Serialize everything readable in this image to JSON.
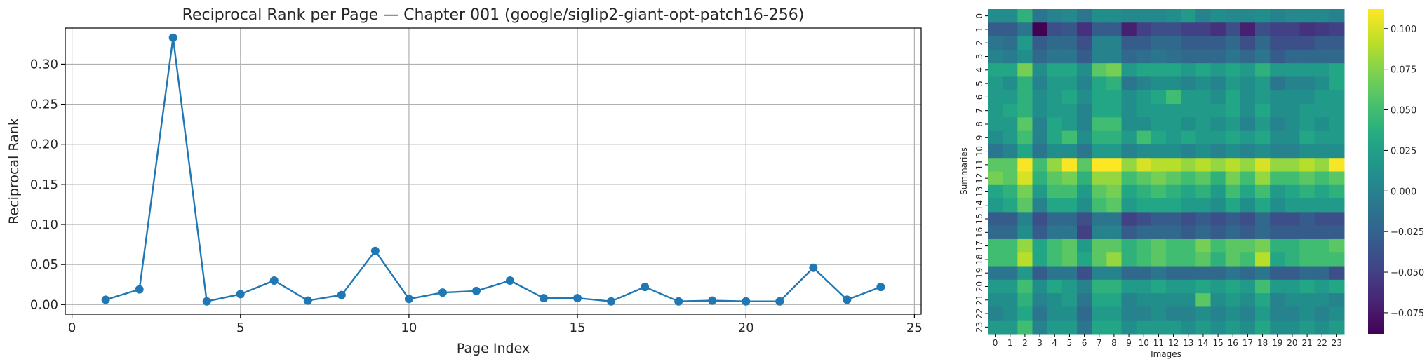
{
  "chart_data": [
    {
      "type": "line",
      "title": "Reciprocal Rank per Page — Chapter 001 (google/siglip2-giant-opt-patch16-256)",
      "xlabel": "Page Index",
      "ylabel": "Reciprocal Rank",
      "xlim": [
        -0.2,
        25.2
      ],
      "ylim": [
        -0.012,
        0.345
      ],
      "xticks": [
        0,
        5,
        10,
        15,
        20,
        25
      ],
      "yticks": [
        0.0,
        0.05,
        0.1,
        0.15,
        0.2,
        0.25,
        0.3
      ],
      "ytick_labels": [
        "0.00",
        "0.05",
        "0.10",
        "0.15",
        "0.20",
        "0.25",
        "0.30"
      ],
      "grid": true,
      "color": "#1f77b4",
      "x": [
        1,
        2,
        3,
        4,
        5,
        6,
        7,
        8,
        9,
        10,
        11,
        12,
        13,
        14,
        15,
        16,
        17,
        18,
        19,
        20,
        21,
        22,
        23,
        24
      ],
      "y": [
        0.006,
        0.019,
        0.333,
        0.004,
        0.013,
        0.03,
        0.005,
        0.012,
        0.067,
        0.007,
        0.015,
        0.017,
        0.03,
        0.008,
        0.008,
        0.004,
        0.022,
        0.004,
        0.005,
        0.004,
        0.004,
        0.046,
        0.006,
        0.022
      ]
    },
    {
      "type": "heatmap",
      "xlabel": "Images",
      "ylabel": "Summaries",
      "x_categories": [
        "0",
        "1",
        "2",
        "3",
        "4",
        "5",
        "6",
        "7",
        "8",
        "9",
        "10",
        "11",
        "12",
        "13",
        "14",
        "15",
        "16",
        "17",
        "18",
        "19",
        "20",
        "21",
        "22",
        "23"
      ],
      "y_categories": [
        "0",
        "1",
        "2",
        "3",
        "4",
        "5",
        "6",
        "7",
        "8",
        "9",
        "10",
        "11",
        "12",
        "13",
        "14",
        "15",
        "16",
        "17",
        "18",
        "19",
        "20",
        "21",
        "22",
        "23"
      ],
      "colorscale": "viridis",
      "vmin": -0.088,
      "vmax": 0.112,
      "colorbar_ticks": [
        0.1,
        0.075,
        0.05,
        0.025,
        0.0,
        -0.025,
        -0.05,
        -0.075
      ],
      "colorbar_tick_labels": [
        "0.100",
        "0.075",
        "0.050",
        "0.025",
        "0.000",
        "−0.025",
        "−0.050",
        "−0.075"
      ],
      "values": [
        [
          0.008,
          0.008,
          0.04,
          -0.01,
          0.0,
          0.005,
          -0.01,
          0.01,
          0.01,
          0.005,
          0.005,
          0.005,
          0.01,
          0.02,
          0.0,
          0.01,
          0.005,
          0.005,
          0.01,
          0.0,
          0.005,
          0.005,
          0.005,
          0.0
        ],
        [
          -0.03,
          -0.03,
          -0.01,
          -0.088,
          -0.04,
          -0.035,
          -0.06,
          -0.03,
          -0.03,
          -0.07,
          -0.05,
          -0.04,
          -0.04,
          -0.05,
          -0.05,
          -0.06,
          -0.04,
          -0.07,
          -0.04,
          -0.05,
          -0.05,
          -0.06,
          -0.055,
          -0.05
        ],
        [
          -0.01,
          -0.015,
          0.02,
          -0.03,
          -0.02,
          -0.02,
          -0.04,
          0.0,
          0.0,
          -0.03,
          -0.03,
          -0.02,
          -0.02,
          -0.03,
          -0.03,
          -0.03,
          -0.02,
          -0.04,
          -0.02,
          -0.04,
          -0.04,
          -0.04,
          -0.03,
          -0.03
        ],
        [
          0.0,
          -0.005,
          0.01,
          -0.02,
          -0.01,
          -0.01,
          -0.03,
          0.0,
          0.0,
          -0.02,
          -0.015,
          -0.01,
          -0.015,
          -0.02,
          -0.02,
          -0.02,
          -0.01,
          -0.02,
          -0.01,
          -0.03,
          -0.02,
          -0.02,
          -0.02,
          -0.02
        ],
        [
          0.03,
          0.03,
          0.07,
          0.01,
          0.03,
          0.03,
          0.01,
          0.06,
          0.07,
          0.02,
          0.03,
          0.03,
          0.03,
          0.02,
          0.03,
          0.02,
          0.03,
          0.02,
          0.04,
          0.02,
          0.02,
          0.02,
          0.02,
          0.03
        ],
        [
          0.02,
          0.01,
          0.04,
          0.0,
          0.02,
          0.02,
          0.0,
          0.03,
          0.04,
          -0.01,
          0.0,
          0.01,
          0.01,
          0.0,
          0.01,
          0.0,
          0.02,
          0.01,
          0.02,
          -0.01,
          0.0,
          0.0,
          0.01,
          0.03
        ],
        [
          0.02,
          0.02,
          0.04,
          0.01,
          0.02,
          0.03,
          0.01,
          0.03,
          0.03,
          0.01,
          0.02,
          0.03,
          0.05,
          0.02,
          0.02,
          0.01,
          0.03,
          0.01,
          0.02,
          0.01,
          0.01,
          0.01,
          0.02,
          0.02
        ],
        [
          0.02,
          0.03,
          0.04,
          0.01,
          0.02,
          0.02,
          0.0,
          0.03,
          0.03,
          0.01,
          0.02,
          0.02,
          0.02,
          0.02,
          0.02,
          0.02,
          0.03,
          0.01,
          0.03,
          0.01,
          0.01,
          0.02,
          0.02,
          0.02
        ],
        [
          0.02,
          0.02,
          0.06,
          0.0,
          0.03,
          0.02,
          0.0,
          0.05,
          0.05,
          0.01,
          0.01,
          0.02,
          0.02,
          0.01,
          0.02,
          0.01,
          0.02,
          0.0,
          0.02,
          0.0,
          0.01,
          0.02,
          0.01,
          0.02
        ],
        [
          0.01,
          0.02,
          0.05,
          0.0,
          0.03,
          0.05,
          0.01,
          0.04,
          0.04,
          0.02,
          0.05,
          0.03,
          0.02,
          0.03,
          0.02,
          0.02,
          0.03,
          0.02,
          0.03,
          0.01,
          0.01,
          0.03,
          0.02,
          0.02
        ],
        [
          -0.01,
          0.0,
          0.03,
          -0.01,
          0.01,
          0.01,
          -0.01,
          0.02,
          0.02,
          0.0,
          0.01,
          0.01,
          0.01,
          0.0,
          0.01,
          0.0,
          0.01,
          0.0,
          0.01,
          0.0,
          0.0,
          0.01,
          0.01,
          0.01
        ],
        [
          0.06,
          0.06,
          0.11,
          0.05,
          0.08,
          0.11,
          0.06,
          0.112,
          0.112,
          0.08,
          0.1,
          0.09,
          0.09,
          0.08,
          0.09,
          0.08,
          0.09,
          0.08,
          0.1,
          0.08,
          0.08,
          0.09,
          0.08,
          0.11
        ],
        [
          0.07,
          0.06,
          0.1,
          0.04,
          0.06,
          0.07,
          0.04,
          0.08,
          0.08,
          0.05,
          0.06,
          0.07,
          0.06,
          0.05,
          0.06,
          0.04,
          0.07,
          0.05,
          0.08,
          0.05,
          0.05,
          0.06,
          0.05,
          0.06
        ],
        [
          0.03,
          0.04,
          0.07,
          0.02,
          0.05,
          0.05,
          0.02,
          0.06,
          0.07,
          0.03,
          0.04,
          0.05,
          0.04,
          0.03,
          0.04,
          0.02,
          0.05,
          0.03,
          0.05,
          0.02,
          0.03,
          0.04,
          0.03,
          0.04
        ],
        [
          0.02,
          0.03,
          0.06,
          0.0,
          0.03,
          0.03,
          0.01,
          0.05,
          0.06,
          0.02,
          0.03,
          0.03,
          0.03,
          0.02,
          0.02,
          0.01,
          0.03,
          0.01,
          0.03,
          0.01,
          0.02,
          0.02,
          0.02,
          0.02
        ],
        [
          -0.03,
          -0.03,
          0.0,
          -0.04,
          -0.02,
          -0.02,
          -0.04,
          -0.01,
          -0.01,
          -0.05,
          -0.04,
          -0.03,
          -0.03,
          -0.04,
          -0.03,
          -0.04,
          -0.03,
          -0.04,
          -0.02,
          -0.04,
          -0.04,
          -0.03,
          -0.04,
          -0.04
        ],
        [
          -0.02,
          -0.02,
          0.01,
          -0.03,
          -0.01,
          -0.01,
          -0.05,
          0.0,
          0.0,
          -0.03,
          -0.02,
          -0.02,
          -0.02,
          -0.03,
          -0.02,
          -0.03,
          -0.02,
          -0.03,
          -0.02,
          -0.03,
          -0.03,
          -0.03,
          -0.03,
          -0.03
        ],
        [
          0.05,
          0.05,
          0.08,
          0.03,
          0.05,
          0.06,
          0.02,
          0.06,
          0.06,
          0.04,
          0.05,
          0.06,
          0.05,
          0.05,
          0.07,
          0.05,
          0.06,
          0.06,
          0.07,
          0.04,
          0.04,
          0.05,
          0.05,
          0.06
        ],
        [
          0.05,
          0.05,
          0.09,
          0.03,
          0.05,
          0.06,
          0.03,
          0.06,
          0.08,
          0.04,
          0.05,
          0.06,
          0.05,
          0.05,
          0.06,
          0.04,
          0.06,
          0.05,
          0.09,
          0.03,
          0.04,
          0.05,
          0.05,
          0.05
        ],
        [
          -0.01,
          -0.01,
          0.02,
          -0.03,
          -0.01,
          -0.01,
          -0.04,
          0.0,
          0.0,
          -0.02,
          -0.02,
          -0.01,
          -0.02,
          -0.02,
          -0.02,
          -0.02,
          -0.01,
          -0.02,
          -0.01,
          -0.03,
          -0.03,
          -0.02,
          -0.02,
          -0.04
        ],
        [
          0.02,
          0.02,
          0.05,
          0.01,
          0.03,
          0.02,
          0.0,
          0.04,
          0.04,
          0.02,
          0.02,
          0.03,
          0.02,
          0.02,
          0.03,
          0.02,
          0.03,
          0.02,
          0.05,
          0.02,
          0.02,
          0.03,
          0.02,
          0.03
        ],
        [
          0.01,
          0.01,
          0.04,
          0.0,
          0.01,
          0.02,
          -0.01,
          0.03,
          0.03,
          0.0,
          0.01,
          0.01,
          0.01,
          0.01,
          0.06,
          0.01,
          0.02,
          0.01,
          0.03,
          0.0,
          0.01,
          0.01,
          0.01,
          0.0
        ],
        [
          0.0,
          0.01,
          0.03,
          -0.01,
          0.01,
          0.01,
          -0.02,
          0.02,
          0.02,
          0.0,
          0.0,
          0.01,
          0.0,
          0.0,
          0.01,
          0.0,
          0.01,
          0.0,
          0.02,
          0.0,
          0.0,
          0.01,
          0.0,
          0.01
        ],
        [
          0.02,
          0.02,
          0.05,
          0.0,
          0.02,
          0.02,
          -0.01,
          0.03,
          0.03,
          0.01,
          0.02,
          0.02,
          0.02,
          0.01,
          0.02,
          0.01,
          0.02,
          0.01,
          0.03,
          0.01,
          0.01,
          0.02,
          0.01,
          0.02
        ]
      ]
    }
  ]
}
